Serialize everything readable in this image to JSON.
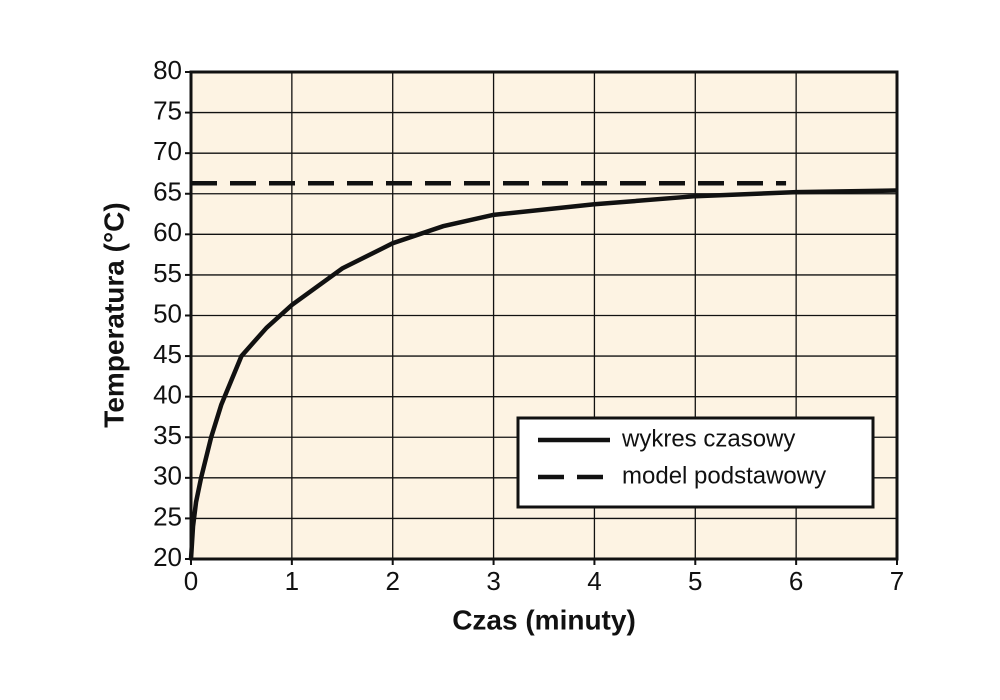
{
  "chart_data": {
    "type": "line",
    "x_label": "Czas (minuty)",
    "y_label": "Temperatura (°C)",
    "xlim": [
      0,
      7
    ],
    "xticks": [
      0,
      1,
      2,
      3,
      4,
      5,
      6,
      7
    ],
    "ylim": [
      20,
      80
    ],
    "yticks": [
      20,
      25,
      30,
      35,
      40,
      45,
      50,
      55,
      60,
      65,
      70,
      75,
      80
    ],
    "grid": true,
    "background": "#fdf3e3",
    "legend": "lower right",
    "series": [
      {
        "name": "wykres czasowy",
        "color": "#111111",
        "dashed": false,
        "x": [
          0,
          0.02,
          0.05,
          0.1,
          0.2,
          0.3,
          0.5,
          0.75,
          1,
          1.5,
          2,
          2.5,
          3,
          4,
          5,
          6,
          7
        ],
        "values": [
          20,
          24,
          27,
          30,
          35,
          39,
          45,
          48.5,
          51.3,
          55.8,
          58.9,
          61,
          62.4,
          63.7,
          64.7,
          65.2,
          65.4
        ]
      },
      {
        "name": "model podstawowy",
        "color": "#111111",
        "dashed": true,
        "x": [
          0,
          5.9
        ],
        "values": [
          66.3,
          66.3
        ]
      }
    ]
  }
}
